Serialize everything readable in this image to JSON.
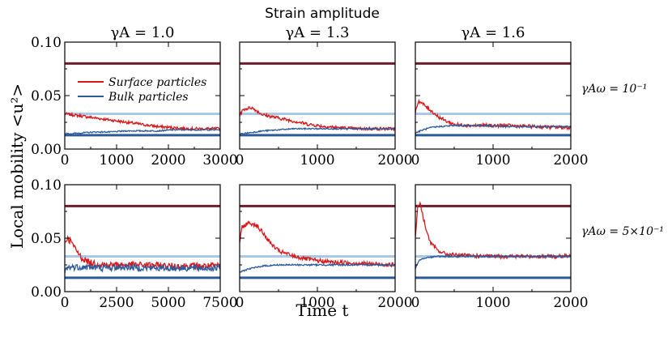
{
  "figure": {
    "suptitle": "Strain amplitude",
    "column_titles": [
      "γA = 1.0",
      "γA = 1.3",
      "γA = 1.6"
    ],
    "row_labels": [
      "γAω = 10⁻¹",
      "γAω = 5×10⁻¹"
    ],
    "xlabel": "Time t",
    "ylabel": "Local mobility <u²>"
  },
  "legend": {
    "placement": "upper-left of top-left panel",
    "entries": [
      {
        "name": "Surface particles",
        "color": "#d7191c"
      },
      {
        "name": "Bulk particles",
        "color": "#2c5a9a"
      }
    ]
  },
  "reference_lines": {
    "levels": [
      0.08,
      0.033,
      0.013
    ],
    "colors": [
      "#6b1f2e",
      "#a9c8e6",
      "#2c5a9a"
    ]
  },
  "chart_data": [
    {
      "type": "line",
      "row": 0,
      "col": 0,
      "xlim": [
        0,
        3000
      ],
      "ylim": [
        0,
        0.1
      ],
      "xticks": [
        "0",
        "1000",
        "2000",
        "3000"
      ],
      "yticks": [
        "0.00",
        "0.05",
        "0.10"
      ],
      "series": [
        {
          "name": "Surface particles",
          "x": [
            0,
            300,
            600,
            900,
            1200,
            1500,
            1800,
            2100,
            2400,
            2700,
            3000
          ],
          "y": [
            0.033,
            0.031,
            0.029,
            0.027,
            0.025,
            0.023,
            0.021,
            0.02,
            0.019,
            0.019,
            0.019
          ],
          "noise": 0.0013
        },
        {
          "name": "Bulk particles",
          "x": [
            0,
            300,
            600,
            900,
            1200,
            1500,
            1800,
            2100,
            2400,
            2700,
            3000
          ],
          "y": [
            0.014,
            0.015,
            0.016,
            0.016,
            0.017,
            0.017,
            0.017,
            0.018,
            0.018,
            0.018,
            0.018
          ],
          "noise": 0.0006
        }
      ]
    },
    {
      "type": "line",
      "row": 0,
      "col": 1,
      "xlim": [
        0,
        2000
      ],
      "ylim": [
        0,
        0.1
      ],
      "xticks": [
        "0",
        "1000",
        "2000"
      ],
      "yticks": [
        "0.00",
        "0.05",
        "0.10"
      ],
      "series": [
        {
          "name": "Surface particles",
          "x": [
            0,
            50,
            150,
            300,
            500,
            700,
            900,
            1100,
            1300,
            1500,
            1700,
            2000
          ],
          "y": [
            0.032,
            0.037,
            0.039,
            0.032,
            0.029,
            0.026,
            0.023,
            0.021,
            0.02,
            0.019,
            0.019,
            0.019
          ],
          "noise": 0.0015
        },
        {
          "name": "Bulk particles",
          "x": [
            0,
            100,
            300,
            500,
            700,
            900,
            1200,
            1500,
            2000
          ],
          "y": [
            0.014,
            0.015,
            0.017,
            0.018,
            0.019,
            0.019,
            0.019,
            0.019,
            0.019
          ],
          "noise": 0.0006
        }
      ]
    },
    {
      "type": "line",
      "row": 0,
      "col": 2,
      "xlim": [
        0,
        2000
      ],
      "ylim": [
        0,
        0.1
      ],
      "xticks": [
        "0",
        "1000",
        "2000"
      ],
      "yticks": [
        "0.00",
        "0.05",
        "0.10"
      ],
      "series": [
        {
          "name": "Surface particles",
          "x": [
            0,
            40,
            100,
            200,
            300,
            400,
            500,
            700,
            900,
            1200,
            1500,
            2000
          ],
          "y": [
            0.035,
            0.045,
            0.042,
            0.036,
            0.03,
            0.026,
            0.023,
            0.022,
            0.022,
            0.022,
            0.021,
            0.02
          ],
          "noise": 0.0016
        },
        {
          "name": "Bulk particles",
          "x": [
            0,
            100,
            200,
            300,
            500,
            800,
            1200,
            1600,
            2000
          ],
          "y": [
            0.015,
            0.018,
            0.02,
            0.021,
            0.022,
            0.022,
            0.021,
            0.021,
            0.021
          ],
          "noise": 0.0007
        }
      ]
    },
    {
      "type": "line",
      "row": 1,
      "col": 0,
      "xlim": [
        0,
        7500
      ],
      "ylim": [
        0,
        0.1
      ],
      "xticks": [
        "0",
        "2500",
        "5000",
        "7500"
      ],
      "yticks": [
        "0.00",
        "0.05",
        "0.10"
      ],
      "series": [
        {
          "name": "Surface particles",
          "x": [
            0,
            100,
            300,
            500,
            800,
            1200,
            2000,
            3000,
            4000,
            5000,
            6000,
            7500
          ],
          "y": [
            0.046,
            0.05,
            0.047,
            0.04,
            0.032,
            0.027,
            0.025,
            0.025,
            0.025,
            0.024,
            0.024,
            0.024
          ],
          "noise": 0.003
        },
        {
          "name": "Bulk particles",
          "x": [
            0,
            100,
            300,
            600,
            1000,
            2000,
            3000,
            4000,
            5000,
            6000,
            7500
          ],
          "y": [
            0.018,
            0.022,
            0.023,
            0.023,
            0.023,
            0.022,
            0.023,
            0.022,
            0.022,
            0.022,
            0.022
          ],
          "noise": 0.003
        }
      ]
    },
    {
      "type": "line",
      "row": 1,
      "col": 1,
      "xlim": [
        0,
        2000
      ],
      "ylim": [
        0,
        0.1
      ],
      "xticks": [
        "0",
        "1000",
        "2000"
      ],
      "yticks": [
        "0.00",
        "0.05",
        "0.10"
      ],
      "series": [
        {
          "name": "Surface particles",
          "x": [
            0,
            30,
            100,
            200,
            300,
            400,
            500,
            700,
            900,
            1100,
            1400,
            1700,
            2000
          ],
          "y": [
            0.046,
            0.06,
            0.064,
            0.063,
            0.055,
            0.045,
            0.038,
            0.033,
            0.03,
            0.028,
            0.027,
            0.026,
            0.025
          ],
          "noise": 0.002
        },
        {
          "name": "Bulk particles",
          "x": [
            0,
            100,
            300,
            500,
            800,
            1200,
            1600,
            2000
          ],
          "y": [
            0.018,
            0.021,
            0.024,
            0.025,
            0.025,
            0.025,
            0.025,
            0.025
          ],
          "noise": 0.0007
        }
      ]
    },
    {
      "type": "line",
      "row": 1,
      "col": 2,
      "xlim": [
        0,
        2000
      ],
      "ylim": [
        0,
        0.1
      ],
      "xticks": [
        "0",
        "1000",
        "2000"
      ],
      "yticks": [
        "0.00",
        "0.05",
        "0.10"
      ],
      "series": [
        {
          "name": "Surface particles",
          "x": [
            0,
            30,
            60,
            100,
            150,
            200,
            300,
            400,
            600,
            900,
            1200,
            1600,
            2000
          ],
          "y": [
            0.05,
            0.08,
            0.083,
            0.07,
            0.055,
            0.045,
            0.038,
            0.035,
            0.034,
            0.033,
            0.033,
            0.033,
            0.033
          ],
          "noise": 0.0018
        },
        {
          "name": "Bulk particles",
          "x": [
            0,
            50,
            150,
            300,
            600,
            1000,
            1500,
            2000
          ],
          "y": [
            0.022,
            0.03,
            0.032,
            0.033,
            0.033,
            0.033,
            0.033,
            0.033
          ],
          "noise": 0.0007
        }
      ]
    }
  ]
}
